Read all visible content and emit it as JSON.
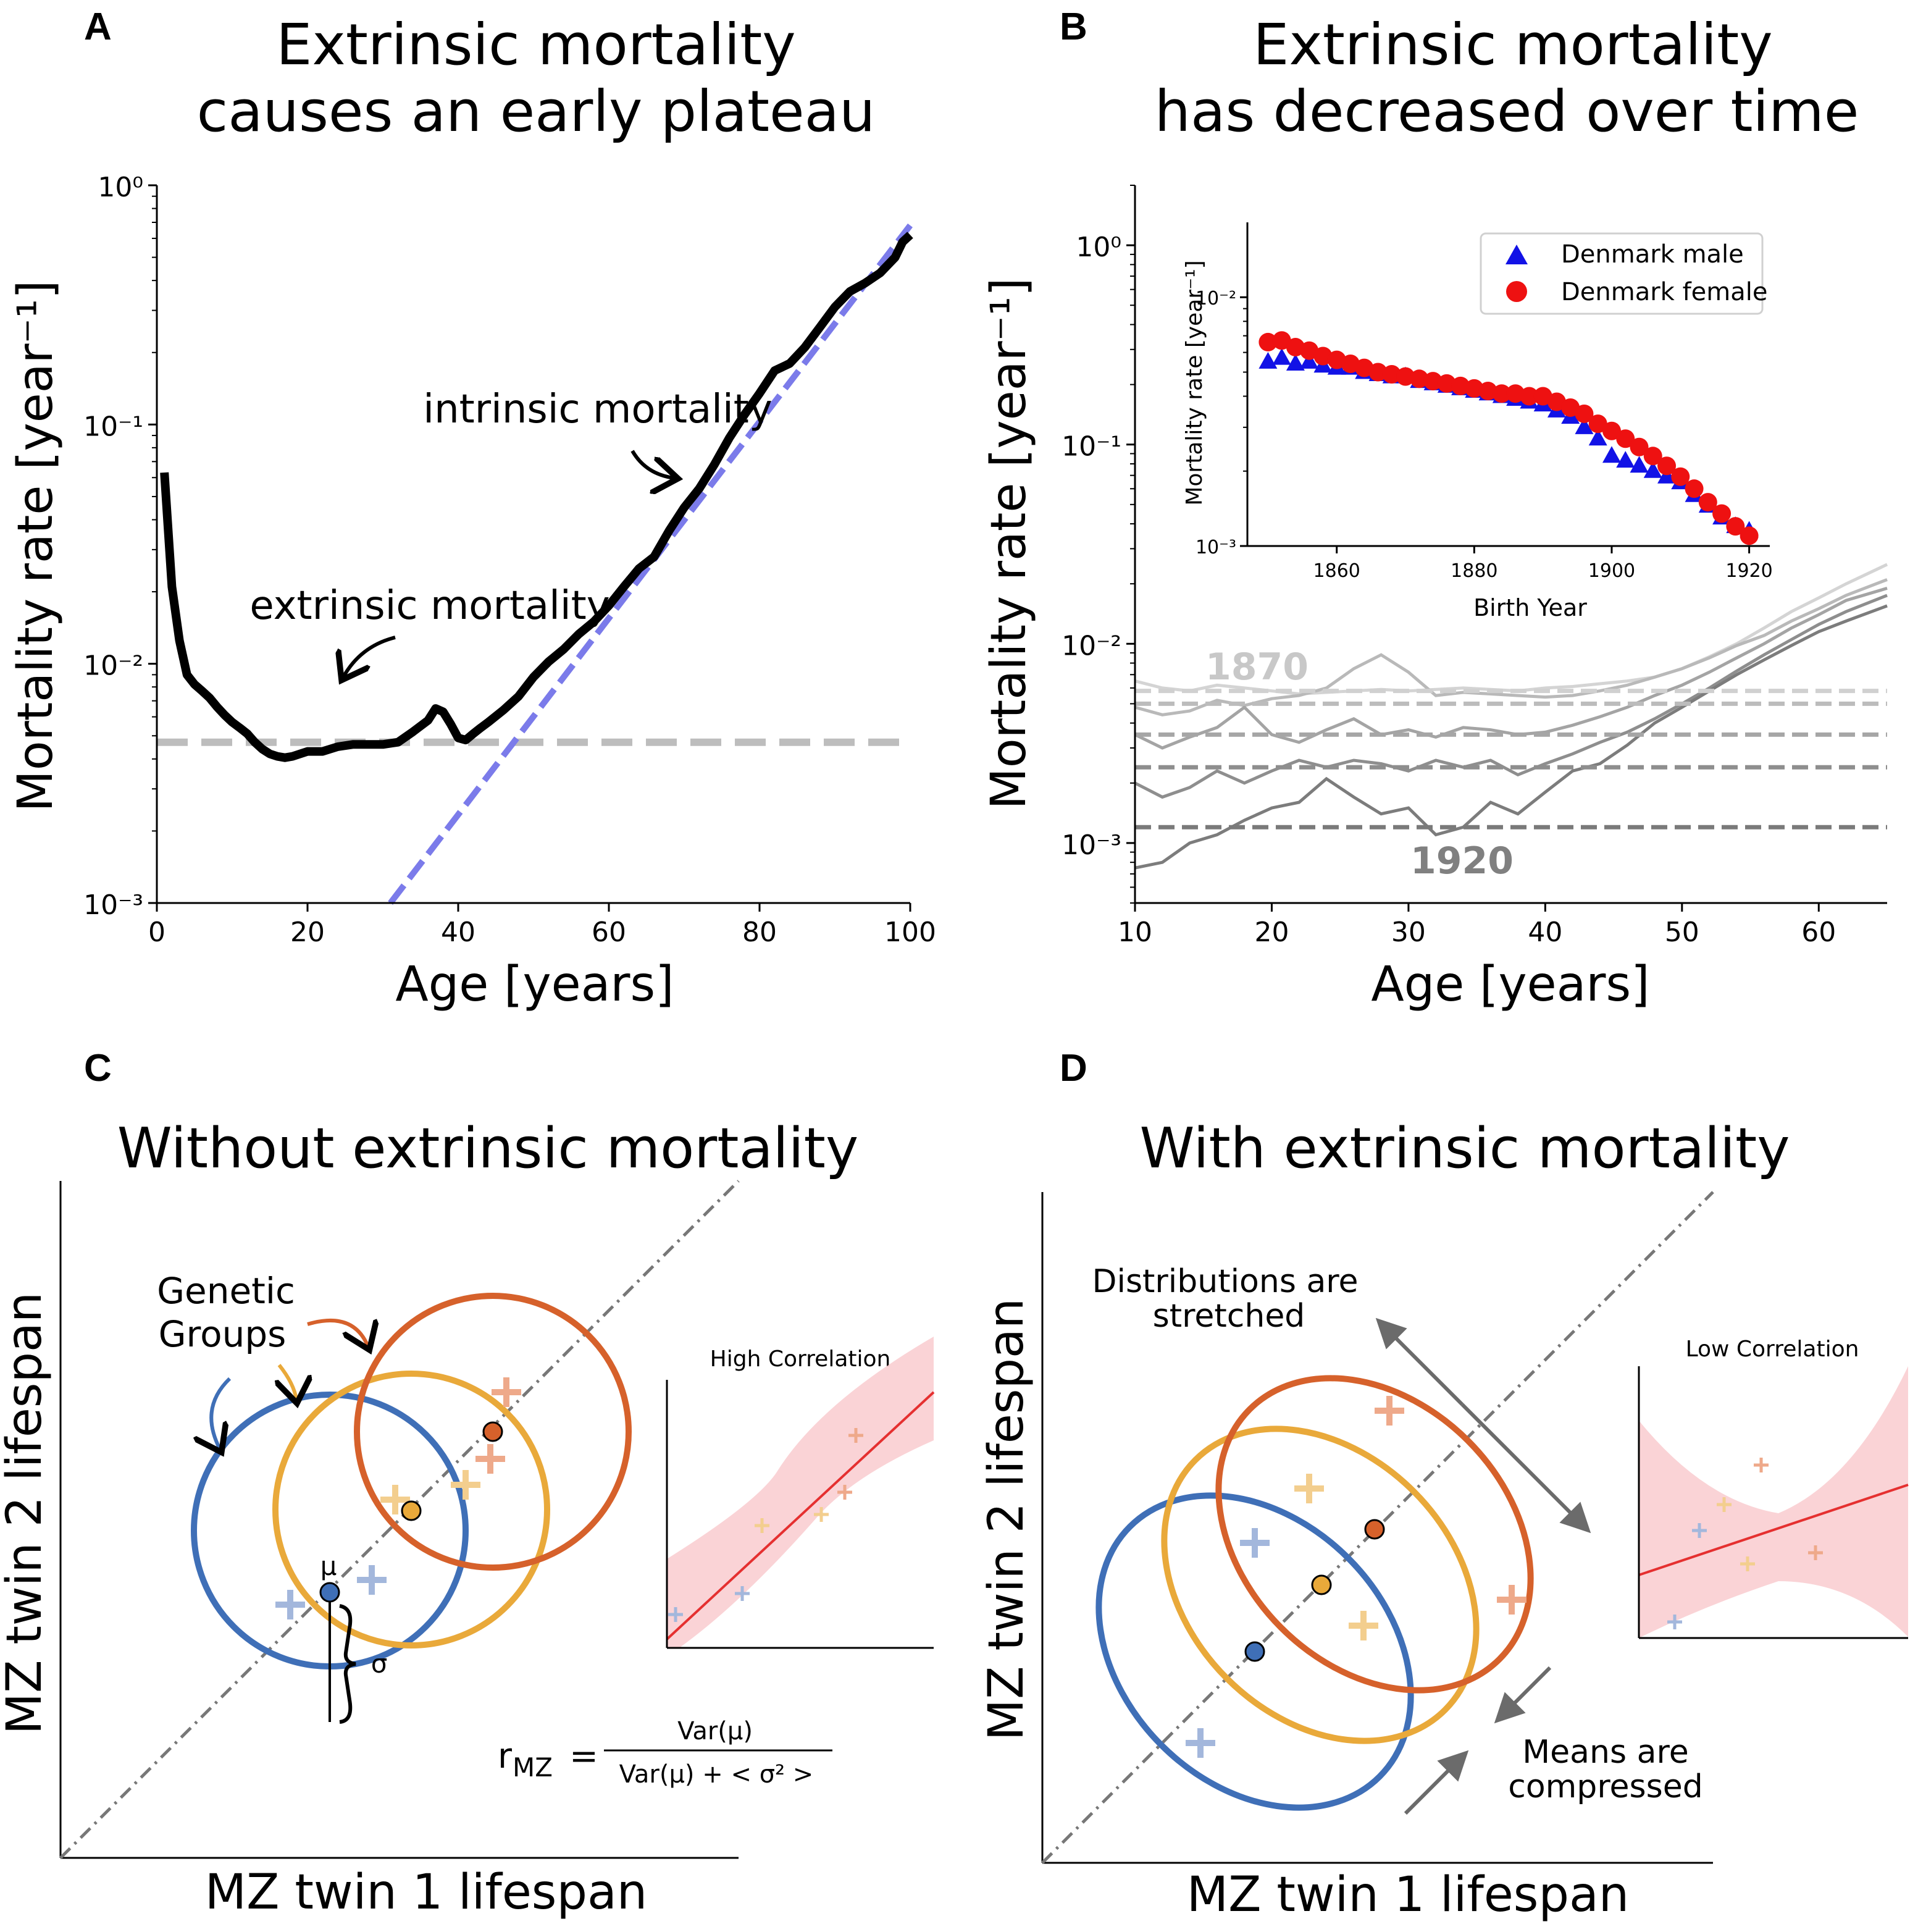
{
  "figure": {
    "colors": {
      "black": "#000000",
      "intrinsic_fit": "#7b7bea",
      "plateau": "#bdbdbd",
      "blue": "#3f6fb7",
      "yellow": "#e9a93a",
      "orange": "#d6612b",
      "male": "#1212e6",
      "female": "#ee1111",
      "band": "#f9c8cc",
      "fitline": "#e53030"
    },
    "panelA": {
      "label": "A",
      "title_lines": [
        "Extrinsic mortality",
        "causes an early plateau"
      ],
      "ylabel": "Mortality rate [year⁻¹]",
      "xlabel": "Age [years]",
      "yticks": [
        "10⁰",
        "10⁻¹",
        "10⁻²",
        "10⁻³"
      ],
      "xticks": [
        "0",
        "20",
        "40",
        "60",
        "80",
        "100"
      ],
      "annotation_intrinsic": "intrinsic mortality",
      "annotation_extrinsic": "extrinsic mortality"
    },
    "panelB": {
      "label": "B",
      "title_lines": [
        "Extrinsic mortality",
        "has decreased over time"
      ],
      "ylabel": "Mortality rate [year⁻¹]",
      "xlabel": "Age [years]",
      "yticks": [
        "10⁰",
        "10⁻¹",
        "10⁻²",
        "10⁻³"
      ],
      "xticks": [
        "10",
        "20",
        "30",
        "40",
        "50",
        "60"
      ],
      "label_1870": "1870",
      "label_1920": "1920",
      "inset": {
        "ylabel": "Mortality rate [year⁻¹]",
        "xlabel": "Birth Year",
        "yticks": [
          "10⁻²",
          "10⁻³"
        ],
        "xticks": [
          "1860",
          "1880",
          "1900",
          "1920"
        ],
        "legend": [
          "Denmark male",
          "Denmark female"
        ]
      }
    },
    "panelC": {
      "label": "C",
      "title": "Without extrinsic mortality",
      "ylabel": "MZ twin 2 lifespan",
      "xlabel": "MZ twin 1 lifespan",
      "genetic_groups": [
        "Genetic",
        "Groups"
      ],
      "mu": "μ",
      "sigma": "σ",
      "inset_title": "High Correlation",
      "formula": {
        "lhs": "r",
        "sub": "MZ",
        "eq": "=",
        "num": "Var(μ)",
        "den": "Var(μ) +  < σ² >"
      }
    },
    "panelD": {
      "label": "D",
      "title": "With extrinsic mortality",
      "ylabel": "MZ twin 2 lifespan",
      "xlabel": "MZ twin 1 lifespan",
      "stretched": [
        "Distributions are",
        "stretched"
      ],
      "compressed": [
        "Means are",
        "compressed"
      ],
      "inset_title": "Low Correlation"
    }
  },
  "chart_data": [
    {
      "panel": "A",
      "type": "line",
      "yscale": "log",
      "xlim": [
        0,
        100
      ],
      "ylim": [
        0.001,
        1
      ],
      "series": [
        {
          "x": [
            1,
            2,
            3,
            4,
            5,
            6,
            7,
            8,
            9,
            10,
            11,
            12,
            13,
            14,
            15,
            16,
            17,
            18,
            19,
            20,
            22,
            24,
            26,
            28,
            30,
            32,
            34,
            36,
            37,
            38,
            39,
            40,
            41,
            42,
            43,
            44,
            46,
            48,
            50,
            52,
            54,
            56,
            58,
            60,
            62,
            64,
            66,
            68,
            70,
            72,
            74,
            76,
            78,
            80,
            82,
            84,
            86,
            88,
            90,
            92,
            94,
            96,
            98,
            99,
            100
          ],
          "y": [
            0.063,
            0.021,
            0.0125,
            0.009,
            0.0082,
            0.0077,
            0.0072,
            0.0066,
            0.0061,
            0.0057,
            0.0054,
            0.0051,
            0.0047,
            0.0044,
            0.0042,
            0.0041,
            0.00405,
            0.0041,
            0.0042,
            0.0043,
            0.0043,
            0.0045,
            0.0046,
            0.0046,
            0.0046,
            0.0047,
            0.0052,
            0.0058,
            0.0065,
            0.0063,
            0.0056,
            0.0049,
            0.0048,
            0.0051,
            0.0054,
            0.0057,
            0.0064,
            0.0073,
            0.0088,
            0.0102,
            0.0115,
            0.0133,
            0.015,
            0.0175,
            0.021,
            0.025,
            0.028,
            0.036,
            0.045,
            0.054,
            0.068,
            0.088,
            0.11,
            0.135,
            0.168,
            0.18,
            0.21,
            0.255,
            0.31,
            0.36,
            0.39,
            0.43,
            0.5,
            0.58,
            0.62
          ]
        },
        {
          "x": [
            31,
            100
          ],
          "y": [
            0.001,
            0.68
          ]
        },
        {
          "x": [
            0,
            100
          ],
          "y": [
            0.0047,
            0.0047
          ]
        }
      ]
    },
    {
      "panel": "B",
      "type": "line",
      "yscale": "log",
      "xlim": [
        10,
        65
      ],
      "ylim": [
        0.0005,
        2
      ],
      "series": [
        {
          "x": [
            10,
            12,
            14,
            16,
            18,
            20,
            22,
            24,
            26,
            28,
            30,
            32,
            34,
            36,
            38,
            40,
            42,
            44,
            46,
            48,
            50,
            52,
            54,
            56,
            58,
            60,
            62,
            65
          ],
          "y": [
            0.0065,
            0.006,
            0.0058,
            0.0062,
            0.006,
            0.0058,
            0.0056,
            0.0057,
            0.0058,
            0.0059,
            0.0058,
            0.0059,
            0.006,
            0.0059,
            0.0058,
            0.006,
            0.0061,
            0.0063,
            0.0065,
            0.0068,
            0.0075,
            0.0086,
            0.01,
            0.012,
            0.0145,
            0.017,
            0.02,
            0.025
          ]
        },
        {
          "x": [
            10,
            12,
            14,
            16,
            18,
            20,
            22,
            24,
            26,
            28,
            30,
            32,
            34,
            36,
            38,
            40,
            42,
            44,
            46,
            48,
            50,
            52,
            54,
            56,
            58,
            60,
            62,
            65
          ],
          "y": [
            0.0048,
            0.0044,
            0.0046,
            0.0052,
            0.0049,
            0.0053,
            0.0055,
            0.006,
            0.0075,
            0.0088,
            0.0072,
            0.0055,
            0.0057,
            0.0056,
            0.0055,
            0.0054,
            0.0055,
            0.0058,
            0.0062,
            0.0068,
            0.0075,
            0.0085,
            0.0098,
            0.011,
            0.013,
            0.015,
            0.0175,
            0.021
          ]
        },
        {
          "x": [
            10,
            12,
            14,
            16,
            18,
            20,
            22,
            24,
            26,
            28,
            30,
            32,
            34,
            36,
            38,
            40,
            42,
            44,
            46,
            48,
            50,
            52,
            54,
            56,
            58,
            60,
            62,
            65
          ],
          "y": [
            0.0035,
            0.003,
            0.0034,
            0.0038,
            0.0048,
            0.0035,
            0.0032,
            0.0037,
            0.0042,
            0.0035,
            0.0037,
            0.0034,
            0.0038,
            0.0037,
            0.0035,
            0.0036,
            0.0039,
            0.0043,
            0.0048,
            0.0055,
            0.0062,
            0.0072,
            0.0085,
            0.01,
            0.012,
            0.014,
            0.0165,
            0.019
          ]
        },
        {
          "x": [
            10,
            12,
            14,
            16,
            18,
            20,
            22,
            24,
            26,
            28,
            30,
            32,
            34,
            36,
            38,
            40,
            42,
            44,
            46,
            48,
            50,
            52,
            54,
            56,
            58,
            60,
            62,
            65
          ],
          "y": [
            0.002,
            0.0017,
            0.0019,
            0.0023,
            0.002,
            0.0023,
            0.0026,
            0.0024,
            0.0026,
            0.0025,
            0.0023,
            0.0026,
            0.0024,
            0.0026,
            0.0022,
            0.0025,
            0.0028,
            0.0032,
            0.0036,
            0.0042,
            0.005,
            0.006,
            0.0073,
            0.0088,
            0.0105,
            0.0125,
            0.0145,
            0.0175
          ]
        },
        {
          "x": [
            10,
            12,
            14,
            16,
            18,
            20,
            22,
            24,
            26,
            28,
            30,
            32,
            34,
            36,
            38,
            40,
            42,
            44,
            46,
            48,
            50,
            52,
            54,
            56,
            58,
            60,
            62,
            65
          ],
          "y": [
            0.00075,
            0.0008,
            0.001,
            0.0011,
            0.0013,
            0.0015,
            0.0016,
            0.0021,
            0.0017,
            0.0014,
            0.0015,
            0.0011,
            0.0012,
            0.0016,
            0.0014,
            0.0018,
            0.0023,
            0.0025,
            0.0031,
            0.004,
            0.0048,
            0.0058,
            0.007,
            0.0083,
            0.0098,
            0.0115,
            0.013,
            0.0155
          ]
        },
        {
          "name": "1870",
          "x": [
            10,
            65
          ],
          "y": [
            0.0058,
            0.0058
          ]
        },
        {
          "x": [
            10,
            65
          ],
          "y": [
            0.005,
            0.005
          ]
        },
        {
          "x": [
            10,
            65
          ],
          "y": [
            0.0035,
            0.0035
          ]
        },
        {
          "x": [
            10,
            65
          ],
          "y": [
            0.0024,
            0.0024
          ]
        },
        {
          "name": "1920",
          "x": [
            10,
            65
          ],
          "y": [
            0.0012,
            0.0012
          ]
        }
      ]
    },
    {
      "panel": "B-inset",
      "type": "scatter",
      "yscale": "log",
      "xlim": [
        1847,
        1923
      ],
      "ylim": [
        0.001,
        0.02
      ],
      "legend_position": "upper-right",
      "series": [
        {
          "name": "Denmark male",
          "x": [
            1850,
            1852,
            1854,
            1856,
            1858,
            1860,
            1862,
            1864,
            1866,
            1868,
            1870,
            1872,
            1874,
            1876,
            1878,
            1880,
            1882,
            1884,
            1886,
            1888,
            1890,
            1892,
            1894,
            1896,
            1898,
            1900,
            1902,
            1904,
            1906,
            1908,
            1910,
            1912,
            1914,
            1916,
            1918,
            1920
          ],
          "y": [
            0.0055,
            0.0057,
            0.0054,
            0.0055,
            0.0053,
            0.0052,
            0.0052,
            0.005,
            0.0049,
            0.0048,
            0.0048,
            0.0046,
            0.0045,
            0.0044,
            0.0043,
            0.0042,
            0.0041,
            0.004,
            0.0039,
            0.0038,
            0.0037,
            0.0035,
            0.0033,
            0.003,
            0.0027,
            0.0023,
            0.0022,
            0.0021,
            0.002,
            0.0019,
            0.0018,
            0.0016,
            0.00145,
            0.0013,
            0.0012,
            0.00115
          ]
        },
        {
          "name": "Denmark female",
          "x": [
            1850,
            1852,
            1854,
            1856,
            1858,
            1860,
            1862,
            1864,
            1866,
            1868,
            1870,
            1872,
            1874,
            1876,
            1878,
            1880,
            1882,
            1884,
            1886,
            1888,
            1890,
            1892,
            1894,
            1896,
            1898,
            1900,
            1902,
            1904,
            1906,
            1908,
            1910,
            1912,
            1914,
            1916,
            1918,
            1920
          ],
          "y": [
            0.0066,
            0.0067,
            0.0063,
            0.0061,
            0.0058,
            0.0056,
            0.0054,
            0.0052,
            0.005,
            0.0049,
            0.0048,
            0.0047,
            0.0046,
            0.0045,
            0.0044,
            0.0043,
            0.0042,
            0.0041,
            0.0041,
            0.004,
            0.004,
            0.0038,
            0.0036,
            0.0034,
            0.0031,
            0.0029,
            0.0027,
            0.0025,
            0.0023,
            0.0021,
            0.0019,
            0.0017,
            0.0015,
            0.00135,
            0.0012,
            0.0011
          ]
        }
      ]
    }
  ]
}
